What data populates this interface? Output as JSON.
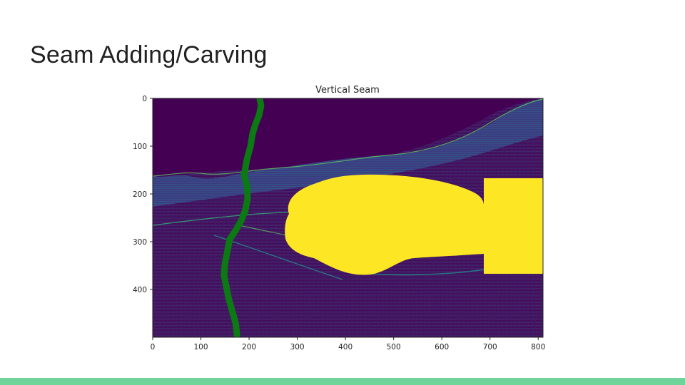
{
  "slide": {
    "title": "Seam Adding/Carving"
  },
  "figure": {
    "title": "Vertical Seam",
    "x_ticks": [
      "0",
      "100",
      "200",
      "300",
      "400",
      "500",
      "600",
      "700",
      "800"
    ],
    "y_ticks": [
      "0",
      "100",
      "200",
      "300",
      "400"
    ],
    "colors": {
      "background": "#440154",
      "edges": "#3b528b",
      "bright_edges": "#5ec962",
      "mask": "#fde725",
      "seam": "#0b7a12",
      "footer": "#6fd49a"
    }
  },
  "chart_data": {
    "type": "heatmap",
    "title": "Vertical Seam",
    "xlim": [
      0,
      810
    ],
    "ylim": [
      500,
      0
    ],
    "seam": {
      "x": [
        222,
        225,
        221,
        213,
        207,
        203,
        195,
        190,
        196,
        197,
        192,
        184,
        173,
        160,
        155,
        150,
        148,
        153,
        158,
        165,
        172,
        175
      ],
      "y": [
        0,
        15,
        35,
        55,
        75,
        100,
        130,
        160,
        185,
        210,
        235,
        255,
        275,
        295,
        320,
        345,
        370,
        395,
        420,
        445,
        470,
        495
      ]
    }
  }
}
